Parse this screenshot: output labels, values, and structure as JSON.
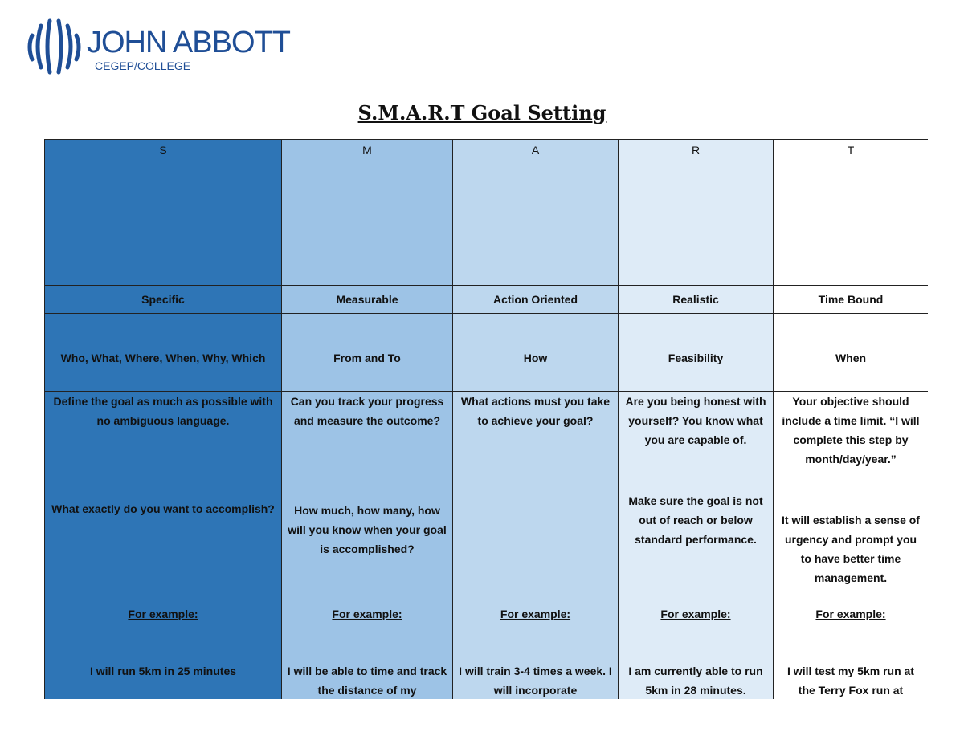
{
  "logo": {
    "name": "JOHN ABBOTT",
    "subtitle": "CEGEP/COLLEGE"
  },
  "title": "S.M.A.R.T Goal Setting",
  "table": {
    "rows": [
      [
        "S",
        "M",
        "A",
        "R",
        "T"
      ],
      [
        "Specific",
        "Measurable",
        "Action Oriented",
        "Realistic",
        "Time Bound"
      ],
      [
        "Who, What, Where, When, Why, Which",
        "From and To",
        "How",
        "Feasibility",
        "When"
      ],
      [
        [
          "Define the goal as much as possible with no ambiguous language.",
          "What exactly do you want to accomplish?"
        ],
        [
          "Can you track your progress and measure the outcome?",
          "How much, how many, how will you know when your goal is accomplished?"
        ],
        [
          "What actions must you take to achieve your goal?"
        ],
        [
          "Are you being honest with yourself? You know what you are capable of.",
          "Make sure the goal is not out of reach or below standard performance."
        ],
        [
          "Your objective should include a time limit. “I will complete this step by month/day/year.”",
          "It will establish a sense of urgency and prompt you to have better time management."
        ]
      ],
      [
        [
          "For example:",
          "I will run 5km in 25 minutes"
        ],
        [
          "For example:",
          "I will be able to time and track the distance of my"
        ],
        [
          "For example:",
          "I will train 3-4 times a week. I will incorporate"
        ],
        [
          "For example:",
          "I am currently able to run 5km in 28 minutes."
        ],
        [
          "For example:",
          "I will test my 5km run at the Terry Fox run at"
        ]
      ]
    ]
  }
}
